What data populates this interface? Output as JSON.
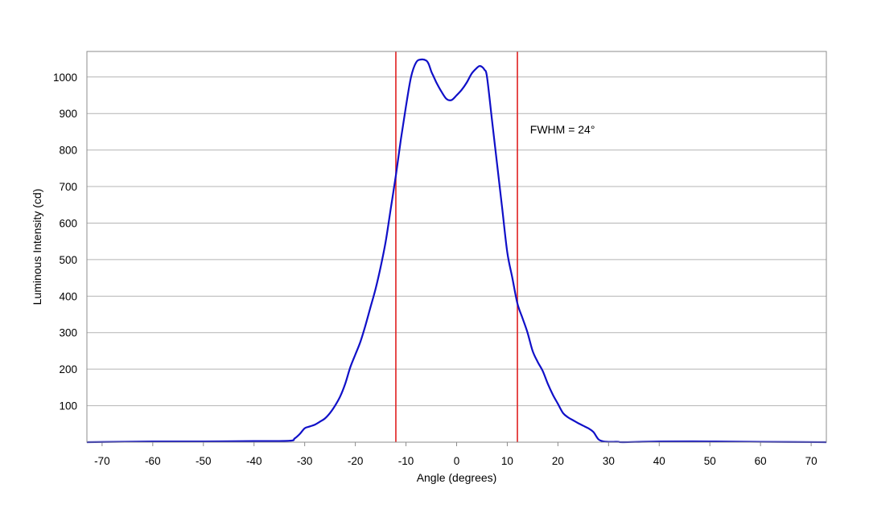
{
  "chart_data": {
    "type": "line",
    "title": "",
    "xlabel": "Angle (degrees)",
    "ylabel": "Luminous Intensity (cd)",
    "xlim": [
      -73,
      73
    ],
    "ylim": [
      0,
      1070
    ],
    "x_ticks": [
      -70,
      -60,
      -50,
      -40,
      -30,
      -20,
      -10,
      0,
      10,
      20,
      30,
      40,
      50,
      60,
      70
    ],
    "y_ticks": [
      100,
      200,
      300,
      400,
      500,
      600,
      700,
      800,
      900,
      1000
    ],
    "grid": "horizontal",
    "legend": "none",
    "colors": {
      "curve": "#1010c8",
      "markers": "#e02020",
      "grid": "#b4b4b4",
      "frame": "#8c8c8c"
    },
    "series": [
      {
        "x": [
          -73,
          -60,
          -50,
          -40,
          -33,
          -32,
          -31,
          -30,
          -29,
          -28,
          -27,
          -26,
          -25,
          -24,
          -23,
          -22,
          -21,
          -20,
          -19,
          -18,
          -17,
          -16,
          -15,
          -14,
          -13,
          -12,
          -11,
          -10,
          -9,
          -8,
          -7,
          -6,
          -5.5,
          -5,
          -4.5,
          -4,
          -3,
          -2,
          -1,
          0,
          1,
          2,
          3,
          4,
          4.5,
          5,
          5.5,
          6,
          7,
          8,
          9,
          10,
          11,
          12,
          13,
          14,
          15,
          16,
          17,
          18,
          19,
          20,
          21,
          22,
          23,
          24,
          25,
          26,
          27,
          28,
          29,
          30,
          31,
          32,
          33,
          40,
          50,
          60,
          73
        ],
        "y": [
          0,
          2,
          2,
          3,
          4,
          10,
          22,
          38,
          43,
          48,
          56,
          65,
          80,
          100,
          125,
          160,
          205,
          240,
          275,
          320,
          370,
          420,
          480,
          550,
          640,
          730,
          830,
          920,
          1000,
          1040,
          1048,
          1045,
          1035,
          1015,
          1000,
          985,
          960,
          940,
          937,
          950,
          965,
          985,
          1010,
          1025,
          1030,
          1028,
          1020,
          1000,
          880,
          760,
          640,
          520,
          450,
          380,
          340,
          300,
          250,
          220,
          195,
          160,
          130,
          105,
          80,
          68,
          60,
          52,
          45,
          38,
          28,
          8,
          2,
          1,
          1,
          1,
          0,
          2,
          2,
          1,
          0
        ]
      }
    ],
    "markers": [
      {
        "x": -12,
        "label": ""
      },
      {
        "x": 12,
        "label": ""
      }
    ],
    "annotation": {
      "text": "FWHM = 24°",
      "x": 14.5,
      "y": 845
    }
  }
}
